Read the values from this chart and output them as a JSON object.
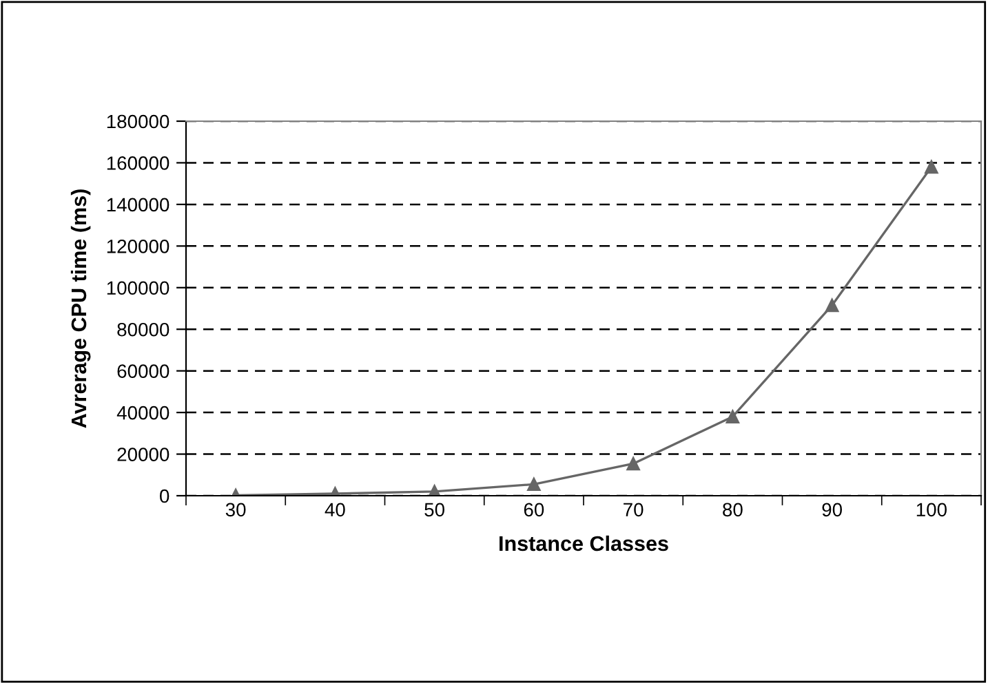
{
  "chart_data": {
    "type": "line",
    "xlabel": "Instance Classes",
    "ylabel": "Avrerage CPU time (ms)",
    "categories": [
      "30",
      "40",
      "50",
      "60",
      "70",
      "80",
      "90",
      "100"
    ],
    "series": [
      {
        "color": "#666666",
        "values": [
          200,
          1000,
          2000,
          5500,
          15400,
          38000,
          91500,
          158000
        ]
      }
    ],
    "ylim": [
      0,
      180000
    ],
    "yticks": [
      0,
      20000,
      40000,
      60000,
      80000,
      100000,
      120000,
      140000,
      160000,
      180000
    ],
    "grid": "y",
    "marker": "triangle",
    "line_style": "solid"
  }
}
